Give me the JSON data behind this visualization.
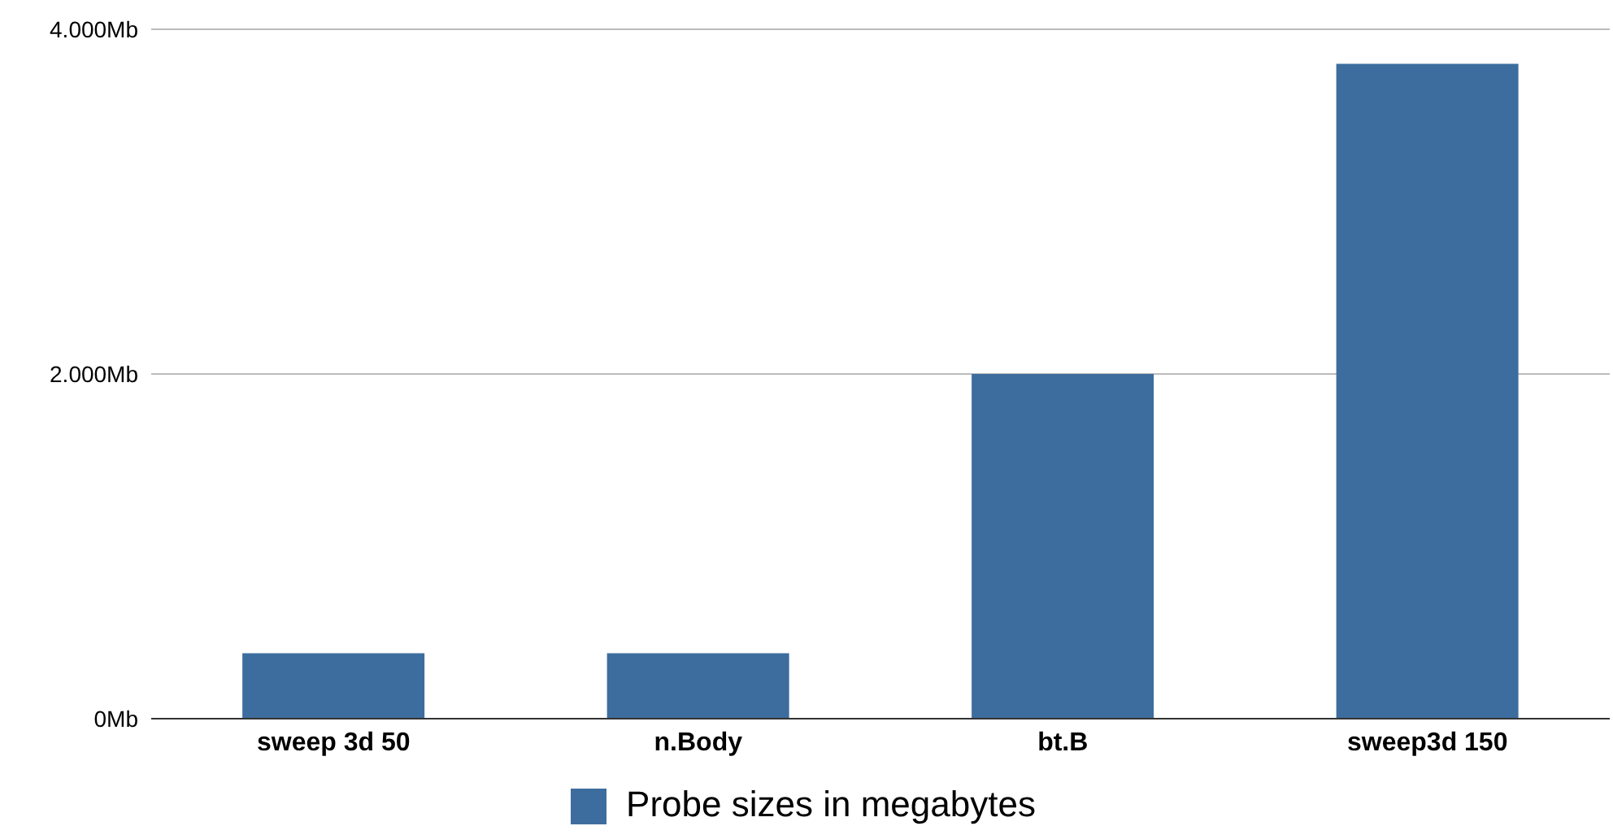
{
  "chart_data": {
    "type": "bar",
    "categories": [
      "sweep 3d 50",
      "n.Body",
      "bt.B",
      "sweep3d 150"
    ],
    "series": [
      {
        "name": "Probe sizes in megabytes",
        "color": "#3d6d9e",
        "values": [
          380,
          380,
          2000,
          3800
        ]
      }
    ],
    "ylim": [
      0,
      4000
    ],
    "yticks": [
      {
        "value": 0,
        "label": "0Mb"
      },
      {
        "value": 2000,
        "label": "2.000Mb"
      },
      {
        "value": 4000,
        "label": "4.000Mb"
      }
    ],
    "grid": "y",
    "legend": "bottom"
  }
}
